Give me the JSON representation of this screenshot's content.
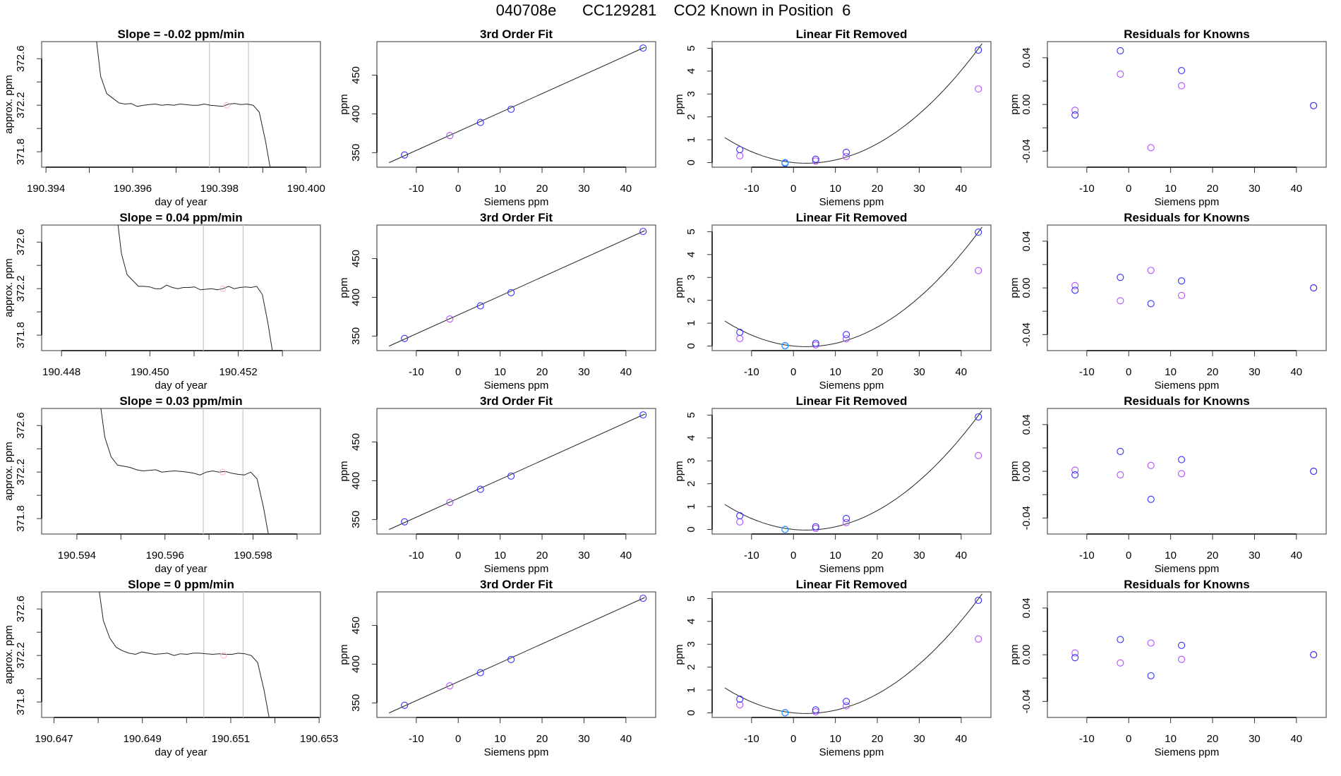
{
  "title": "040708e      CC129281    CO2 Known in Position  6",
  "colors": {
    "known_blue": "#2f2fff",
    "known_purple": "#b34dff",
    "cyan": "#22aaff",
    "mean_marker": "#ffb3c1",
    "window_line": "#c8c8c8",
    "line": "#222222"
  },
  "axes": {
    "ts": {
      "ylabel": "approx. ppm",
      "xlabel": "day of year",
      "ylim": [
        371.667,
        372.747
      ],
      "yticks": [
        371.8,
        372.0,
        372.2,
        372.4,
        372.6
      ],
      "yticklabels": [
        "371.8",
        "",
        "372.2",
        "",
        "372.6"
      ]
    },
    "fit": {
      "title": "3rd Order Fit",
      "xlabel": "Siemens ppm",
      "ylabel": "ppm",
      "xlim": [
        -19.4,
        47.1
      ],
      "ylim": [
        331.2,
        493.3
      ],
      "xticks": [
        -10,
        0,
        10,
        20,
        30,
        40
      ],
      "xticklabels": [
        "-10",
        "0",
        "10",
        "20",
        "30",
        "40"
      ],
      "yticks": [
        350,
        400,
        450
      ],
      "yticklabels": [
        "350",
        "400",
        "450"
      ]
    },
    "linfit": {
      "title": "Linear Fit Removed",
      "xlabel": "Siemens ppm",
      "ylabel": "ppm",
      "xlim": [
        -19.4,
        47.1
      ],
      "ylim": [
        -0.2,
        5.29
      ],
      "xticks": [
        -10,
        0,
        10,
        20,
        30,
        40
      ],
      "xticklabels": [
        "-10",
        "0",
        "10",
        "20",
        "30",
        "40"
      ],
      "yticks": [
        0,
        1,
        2,
        3,
        4,
        5
      ],
      "yticklabels": [
        "0",
        "1",
        "2",
        "3",
        "4",
        "5"
      ]
    },
    "resid": {
      "title": "Residuals for Knowns",
      "xlabel": "Siemens ppm",
      "ylabel": "ppm",
      "xlim": [
        -19.4,
        47.1
      ],
      "ylim": [
        -0.0537,
        0.0538
      ],
      "xticks": [
        -10,
        0,
        10,
        20,
        30,
        40
      ],
      "xticklabels": [
        "-10",
        "0",
        "10",
        "20",
        "30",
        "40"
      ],
      "yticks": [
        -0.04,
        -0.02,
        0,
        0.02,
        0.04
      ],
      "yticklabels": [
        "-0.04",
        "",
        "0.00",
        "",
        "0.04"
      ]
    }
  },
  "chart_data": [
    {
      "row": 1,
      "type": "line",
      "title": "Slope =  -0.02  ppm/min",
      "xlim": [
        190.3939,
        190.40033
      ],
      "xticks": [
        190.394,
        190.395,
        190.396,
        190.397,
        190.398,
        190.399,
        190.4
      ],
      "xticklabels": [
        "190.394",
        "",
        "190.396",
        "",
        "190.398",
        "",
        "190.400"
      ],
      "x_start": 190.39512,
      "x_end": 190.3992,
      "values": [
        372.9,
        372.45,
        372.3,
        372.26,
        372.22,
        372.21,
        372.215,
        372.19,
        372.2,
        372.205,
        372.21,
        372.2,
        372.205,
        372.2,
        372.21,
        372.205,
        372.2,
        372.2,
        372.21,
        372.2,
        372.195,
        372.19,
        372.21,
        372.215,
        372.205,
        372.21,
        372.2,
        372.14,
        371.9,
        371.6
      ],
      "window": [
        190.39777,
        190.39867
      ],
      "mean_marker": [
        190.39817,
        372.2
      ],
      "fit": {
        "blue": [
          [
            -12.8,
            347
          ],
          [
            5.3,
            389
          ],
          [
            12.6,
            406
          ],
          [
            44.1,
            485
          ]
        ],
        "purple": [
          [
            -2,
            372
          ]
        ],
        "line": [
          [
            -16.5,
            337
          ],
          [
            44.5,
            486
          ]
        ]
      },
      "linfit": {
        "blue": [
          [
            -12.8,
            0.57
          ],
          [
            -2,
            -0.03
          ],
          [
            5.3,
            0.15
          ],
          [
            12.6,
            0.45
          ],
          [
            44.1,
            4.92
          ]
        ],
        "purple": [
          [
            -12.8,
            0.3
          ],
          [
            -2,
            0.0
          ],
          [
            5.3,
            0.07
          ],
          [
            12.6,
            0.27
          ],
          [
            44.1,
            3.22
          ]
        ],
        "cyan": [
          [
            -2,
            0.0
          ]
        ],
        "curve": {
          "a": 0.00297,
          "b": -0.0181,
          "x_range": [
            -16.4,
            45
          ]
        }
      },
      "resid": {
        "blue": [
          [
            -12.8,
            -0.009
          ],
          [
            -2,
            0.046
          ],
          [
            12.6,
            0.029
          ],
          [
            44.1,
            -0.001
          ]
        ],
        "purple": [
          [
            -12.8,
            -0.005
          ],
          [
            -2,
            0.026
          ],
          [
            5.3,
            -0.037
          ],
          [
            12.6,
            0.016
          ],
          [
            44.1,
            -0.001
          ]
        ]
      }
    },
    {
      "row": 2,
      "type": "line",
      "title": "Slope =  0.04  ppm/min",
      "xlim": [
        190.44755,
        190.45386
      ],
      "xticks": [
        190.448,
        190.449,
        190.45,
        190.451,
        190.452,
        190.453
      ],
      "xticklabels": [
        "190.448",
        "",
        "190.450",
        "",
        "190.452",
        ""
      ],
      "x_start": 190.44923,
      "x_end": 190.4528,
      "values": [
        372.9,
        372.5,
        372.32,
        372.27,
        372.22,
        372.22,
        372.215,
        372.2,
        372.2,
        372.23,
        372.21,
        372.2,
        372.21,
        372.21,
        372.215,
        372.19,
        372.195,
        372.2,
        372.19,
        372.2,
        372.22,
        372.2,
        372.21,
        372.215,
        372.21,
        372.22,
        372.15,
        371.9,
        371.6
      ],
      "window": [
        190.45121,
        190.45211
      ],
      "mean_marker": [
        190.45165,
        372.2
      ],
      "fit": {
        "blue": [
          [
            -12.8,
            347
          ],
          [
            5.3,
            389
          ],
          [
            12.6,
            406
          ],
          [
            44.1,
            485
          ]
        ],
        "purple": [
          [
            -2,
            372
          ]
        ],
        "line": [
          [
            -16.5,
            337
          ],
          [
            44.5,
            486
          ]
        ]
      },
      "linfit": {
        "blue": [
          [
            -12.8,
            0.6
          ],
          [
            -2,
            0.02
          ],
          [
            5.3,
            0.12
          ],
          [
            12.6,
            0.5
          ],
          [
            44.1,
            4.98
          ]
        ],
        "purple": [
          [
            -12.8,
            0.33
          ],
          [
            -2,
            0.01
          ],
          [
            5.3,
            0.05
          ],
          [
            12.6,
            0.32
          ],
          [
            44.1,
            3.3
          ]
        ],
        "cyan": [
          [
            -2,
            0.01
          ]
        ],
        "curve": {
          "a": 0.00297,
          "b": -0.0181,
          "x_range": [
            -16.4,
            45
          ]
        }
      },
      "resid": {
        "blue": [
          [
            -12.8,
            -0.002
          ],
          [
            -2,
            0.009
          ],
          [
            5.3,
            -0.0135
          ],
          [
            12.6,
            0.006
          ],
          [
            44.1,
            0.0
          ]
        ],
        "purple": [
          [
            -12.8,
            0.002
          ],
          [
            -2,
            -0.011
          ],
          [
            5.3,
            0.015
          ],
          [
            12.6,
            -0.0065
          ],
          [
            44.1,
            0.0
          ]
        ]
      }
    },
    {
      "row": 3,
      "type": "line",
      "title": "Slope =  0.03  ppm/min",
      "xlim": [
        190.5932,
        190.59953
      ],
      "xticks": [
        190.594,
        190.595,
        190.596,
        190.597,
        190.598,
        190.599
      ],
      "xticklabels": [
        "190.594",
        "",
        "190.596",
        "",
        "190.598",
        ""
      ],
      "x_start": 190.59449,
      "x_end": 190.59838,
      "values": [
        372.9,
        372.5,
        372.33,
        372.26,
        372.25,
        372.24,
        372.22,
        372.21,
        372.215,
        372.22,
        372.2,
        372.205,
        372.21,
        372.205,
        372.2,
        372.19,
        372.175,
        372.2,
        372.21,
        372.2,
        372.205,
        372.19,
        372.18,
        372.175,
        372.2,
        372.14,
        371.9,
        371.6
      ],
      "window": [
        190.59687,
        190.59777
      ],
      "mean_marker": [
        190.59731,
        372.2
      ],
      "fit": {
        "blue": [
          [
            -12.8,
            347
          ],
          [
            5.3,
            389
          ],
          [
            12.6,
            406
          ],
          [
            44.1,
            485
          ]
        ],
        "purple": [
          [
            -2,
            372
          ]
        ],
        "line": [
          [
            -16.5,
            337
          ],
          [
            44.5,
            486
          ]
        ]
      },
      "linfit": {
        "blue": [
          [
            -12.8,
            0.6
          ],
          [
            -2,
            0.0
          ],
          [
            5.3,
            0.12
          ],
          [
            12.6,
            0.48
          ],
          [
            44.1,
            4.92
          ]
        ],
        "purple": [
          [
            -12.8,
            0.33
          ],
          [
            -2,
            0.0
          ],
          [
            5.3,
            0.05
          ],
          [
            12.6,
            0.3
          ],
          [
            44.1,
            3.23
          ]
        ],
        "cyan": [
          [
            -2,
            0.0
          ]
        ],
        "curve": {
          "a": 0.00297,
          "b": -0.0181,
          "x_range": [
            -16.4,
            45
          ]
        }
      },
      "resid": {
        "blue": [
          [
            -12.8,
            -0.003
          ],
          [
            -2,
            0.017
          ],
          [
            5.3,
            -0.024
          ],
          [
            12.6,
            0.01
          ],
          [
            44.1,
            0.0
          ]
        ],
        "purple": [
          [
            -12.8,
            0.001
          ],
          [
            -2,
            -0.003
          ],
          [
            5.3,
            0.005
          ],
          [
            12.6,
            -0.002
          ],
          [
            44.1,
            0.0
          ]
        ]
      }
    },
    {
      "row": 4,
      "type": "line",
      "title": "Slope =  0  ppm/min",
      "xlim": [
        190.64672,
        190.65303
      ],
      "xticks": [
        190.647,
        190.648,
        190.649,
        190.65,
        190.651,
        190.652,
        190.653
      ],
      "xticklabels": [
        "190.647",
        "",
        "190.649",
        "",
        "190.651",
        "",
        "190.653"
      ],
      "x_start": 190.64797,
      "x_end": 190.6519,
      "values": [
        372.9,
        372.5,
        372.35,
        372.27,
        372.24,
        372.22,
        372.21,
        372.23,
        372.22,
        372.21,
        372.215,
        372.22,
        372.2,
        372.215,
        372.21,
        372.22,
        372.22,
        372.215,
        372.21,
        372.215,
        372.21,
        372.21,
        372.22,
        372.215,
        372.2,
        372.14,
        371.9,
        371.6
      ],
      "window": [
        190.65039,
        190.65128
      ],
      "mean_marker": [
        190.65084,
        372.2
      ],
      "fit": {
        "blue": [
          [
            -12.8,
            347
          ],
          [
            5.3,
            389
          ],
          [
            12.6,
            406
          ],
          [
            44.1,
            485
          ]
        ],
        "purple": [
          [
            -2,
            372
          ]
        ],
        "line": [
          [
            -16.5,
            337
          ],
          [
            44.5,
            486
          ]
        ]
      },
      "linfit": {
        "blue": [
          [
            -12.8,
            0.6
          ],
          [
            -2,
            0.01
          ],
          [
            5.3,
            0.13
          ],
          [
            12.6,
            0.5
          ],
          [
            44.1,
            4.92
          ]
        ],
        "purple": [
          [
            -12.8,
            0.35
          ],
          [
            -2,
            0.0
          ],
          [
            5.3,
            0.05
          ],
          [
            12.6,
            0.31
          ],
          [
            44.1,
            3.23
          ]
        ],
        "cyan": [
          [
            -2,
            0.01
          ]
        ],
        "curve": {
          "a": 0.00297,
          "b": -0.0181,
          "x_range": [
            -16.4,
            45
          ]
        }
      },
      "resid": {
        "blue": [
          [
            -12.8,
            -0.0025
          ],
          [
            -2,
            0.013
          ],
          [
            5.3,
            -0.018
          ],
          [
            12.6,
            0.008
          ],
          [
            44.1,
            0.0
          ]
        ],
        "purple": [
          [
            -12.8,
            0.0015
          ],
          [
            -2,
            -0.007
          ],
          [
            5.3,
            0.01
          ],
          [
            12.6,
            -0.004
          ],
          [
            44.1,
            0.0
          ]
        ]
      }
    }
  ]
}
